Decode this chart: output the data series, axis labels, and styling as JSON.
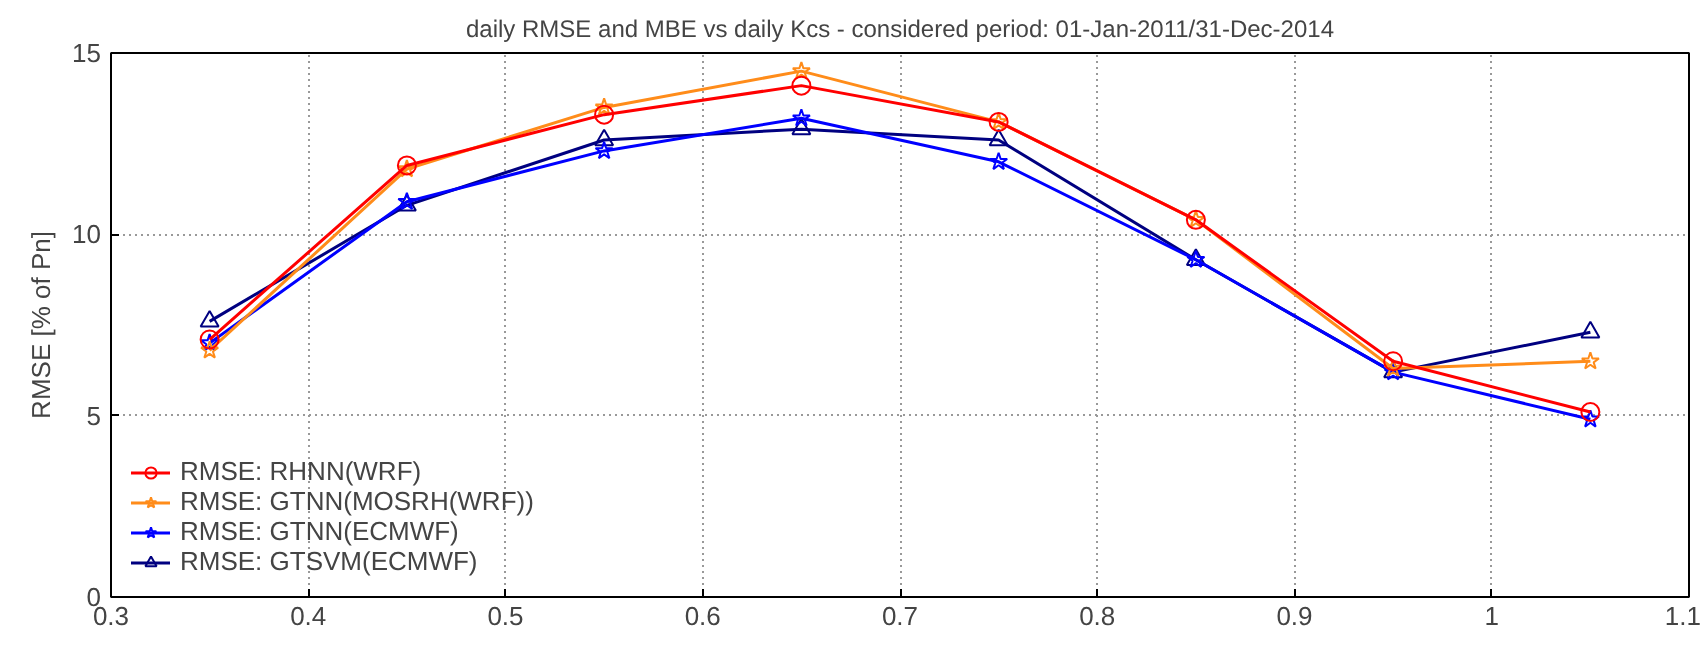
{
  "chart_data": {
    "type": "line",
    "title": "daily RMSE and MBE vs daily Kcs - considered period: 01-Jan-2011/31-Dec-2014",
    "ylabel": "RMSE [% of Pn]",
    "x": [
      0.35,
      0.45,
      0.55,
      0.65,
      0.75,
      0.85,
      0.95,
      1.05
    ],
    "xlim": [
      0.3,
      1.1
    ],
    "xticks": [
      0.3,
      0.4,
      0.5,
      0.6,
      0.7,
      0.8,
      0.9,
      1,
      1.1
    ],
    "ylim": [
      0,
      15
    ],
    "yticks": [
      0,
      5,
      10,
      15
    ],
    "grid": true,
    "legend": "bottom left",
    "line_style": "solid",
    "series": [
      {
        "name": "RMSE: RHNN(WRF)",
        "color": "#ff0000",
        "marker": "circle",
        "values": [
          7.1,
          11.9,
          13.3,
          14.1,
          13.1,
          10.4,
          6.5,
          5.1
        ]
      },
      {
        "name": "RMSE: GTNN(MOSRH(WRF))",
        "color": "#ff8c1a",
        "marker": "star",
        "values": [
          6.8,
          11.8,
          13.5,
          14.5,
          13.1,
          10.4,
          6.3,
          6.5
        ]
      },
      {
        "name": "RMSE: GTNN(ECMWF)",
        "color": "#0000ff",
        "marker": "star",
        "values": [
          7.0,
          10.9,
          12.3,
          13.2,
          12.0,
          9.3,
          6.2,
          4.9
        ]
      },
      {
        "name": "RMSE: GTSVM(ECMWF)",
        "color": "#000080",
        "marker": "triangle",
        "values": [
          7.6,
          10.8,
          12.6,
          12.9,
          12.6,
          9.3,
          6.2,
          7.3
        ]
      }
    ]
  }
}
